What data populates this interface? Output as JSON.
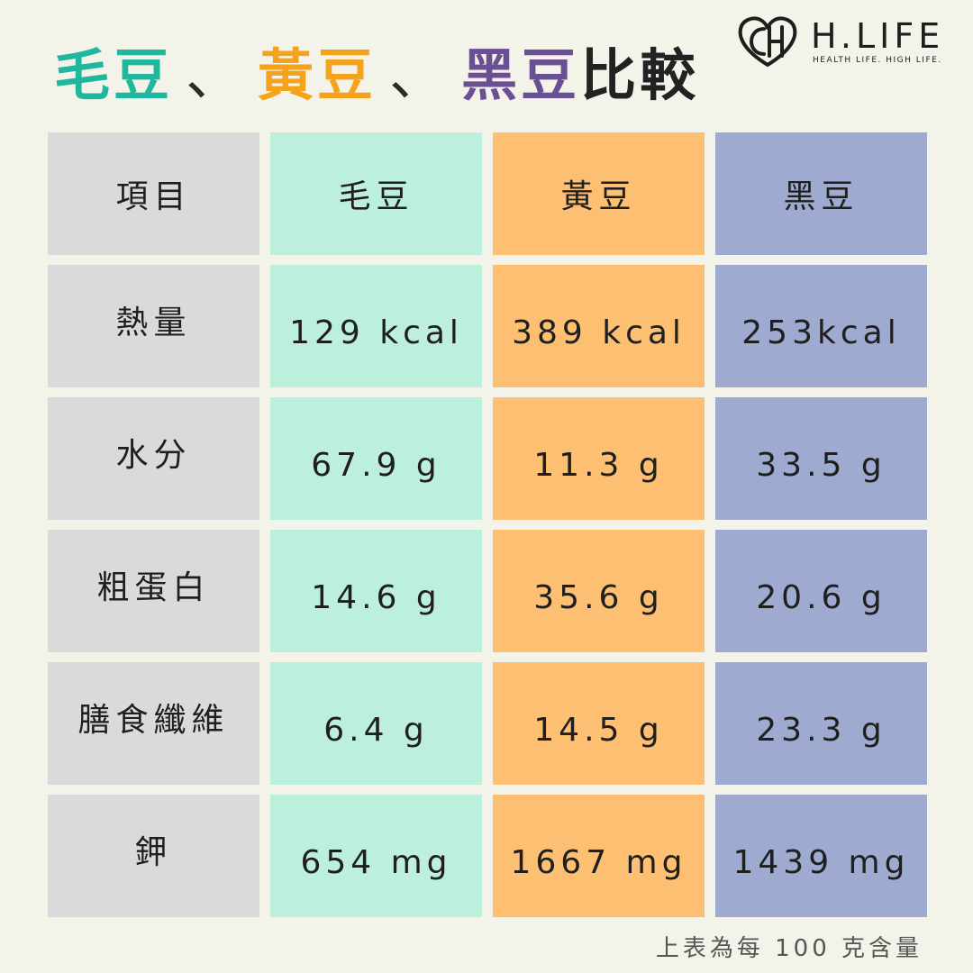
{
  "title": {
    "edamame": "毛豆",
    "sep1": "、",
    "soybean": "黃豆",
    "sep2": "、",
    "black_soybean": "黑豆",
    "compare": "比較"
  },
  "logo": {
    "name": "H.LIFE",
    "tagline": "HEALTH LIFE. HIGH LIFE.",
    "icon": "heart-ch-logo-icon"
  },
  "table": {
    "headers": [
      "項目",
      "毛豆",
      "黃豆",
      "黑豆"
    ],
    "rows": [
      {
        "label": "熱量",
        "edamame": "129 kcal",
        "soybean": "389 kcal",
        "black": "253kcal"
      },
      {
        "label": "水分",
        "edamame": "67.9 g",
        "soybean": "11.3 g",
        "black": "33.5 g"
      },
      {
        "label": "粗蛋白",
        "edamame": "14.6 g",
        "soybean": "35.6 g",
        "black": "20.6 g"
      },
      {
        "label": "膳食纖維",
        "edamame": "6.4 g",
        "soybean": "14.5 g",
        "black": "23.3 g"
      },
      {
        "label": "鉀",
        "edamame": "654 mg",
        "soybean": "1667 mg",
        "black": "1439 mg"
      }
    ]
  },
  "footnote": "上表為每 100 克含量",
  "colors": {
    "background": "#f4f3ea",
    "label_cell": "#dadada",
    "edamame": "#bdf0dc",
    "soybean": "#fdc073",
    "black_soybean": "#9eaacf",
    "title_edamame": "#1fb79d",
    "title_soybean": "#f5a21c",
    "title_black": "#6a4f95"
  }
}
